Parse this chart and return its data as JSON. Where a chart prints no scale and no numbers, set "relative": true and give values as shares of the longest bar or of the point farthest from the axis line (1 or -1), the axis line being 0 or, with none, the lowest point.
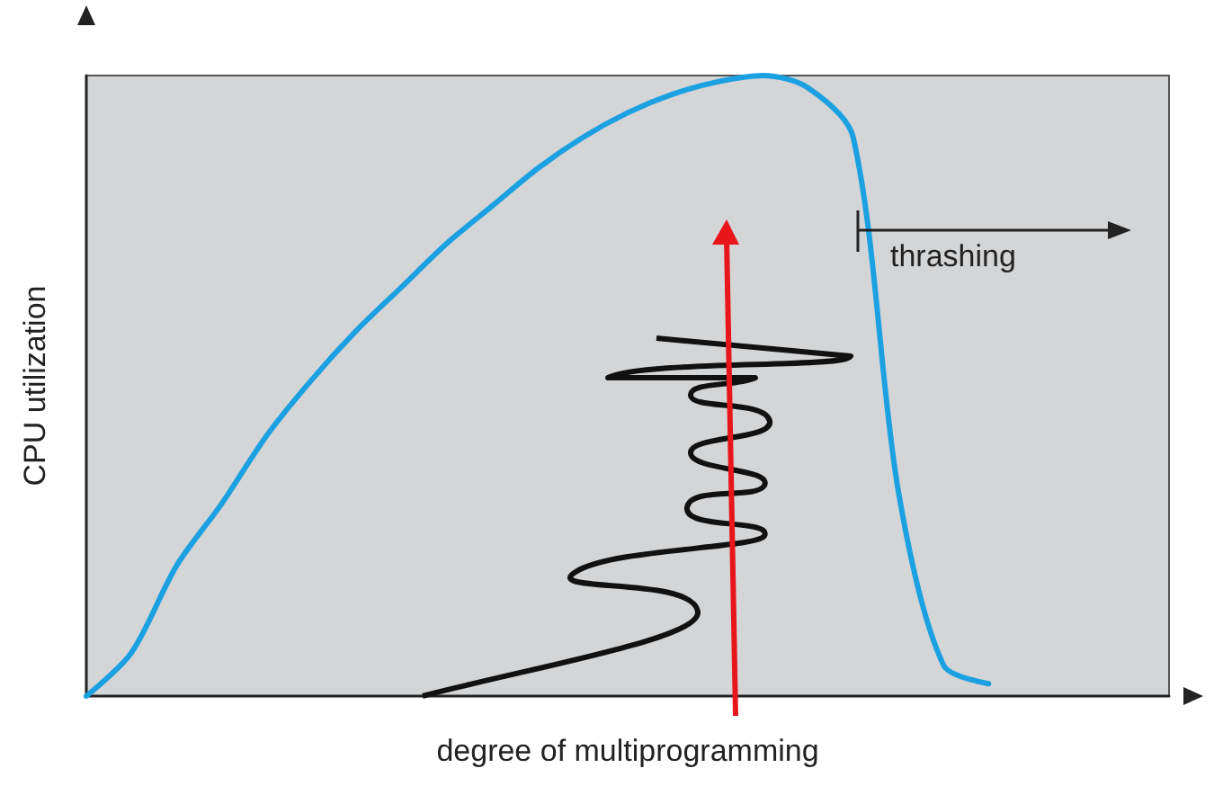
{
  "chart_data": {
    "type": "line",
    "relative": true,
    "xlabel": "degree of multiprogramming",
    "ylabel": "CPU utilization",
    "annotations": [
      "thrashing"
    ],
    "categories": [
      null,
      null,
      null,
      null,
      null,
      null,
      null,
      null,
      null,
      null,
      null,
      null,
      null,
      null,
      null,
      null,
      null,
      null,
      null,
      null,
      null,
      null,
      null,
      null,
      null
    ],
    "series": [
      {
        "color": "#1ba1e2",
        "values": [
          0,
          0.07,
          0.21,
          0.31,
          0.42,
          0.51,
          0.59,
          0.66,
          0.73,
          0.79,
          0.85,
          0.9,
          0.94,
          0.97,
          0.99,
          1,
          0.98,
          0.9,
          0.33,
          0.05,
          0.02,
          null,
          null,
          null,
          null
        ]
      }
    ],
    "marker": "none",
    "grid": false
  }
}
